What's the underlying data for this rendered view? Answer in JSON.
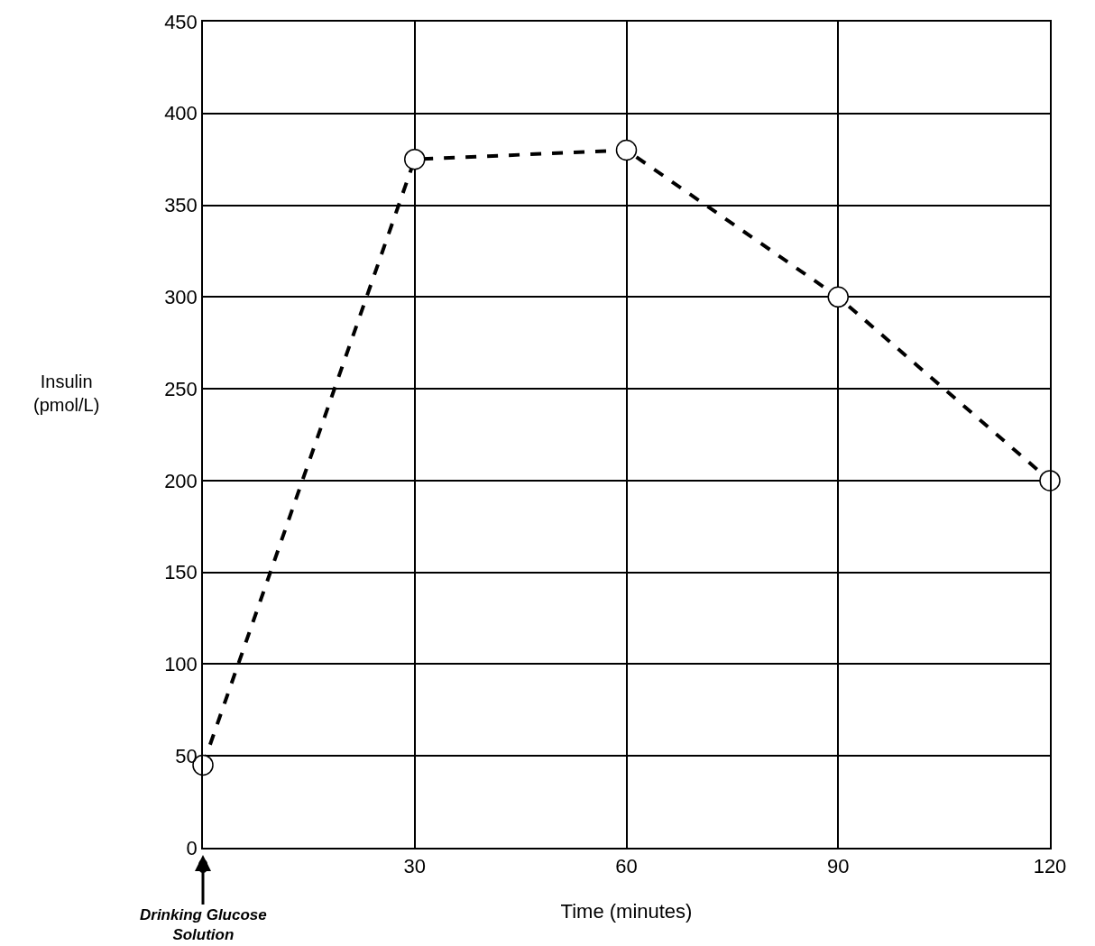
{
  "chart_data": {
    "type": "line",
    "xlabel": "Time (minutes)",
    "ylabel": "Insulin\n(pmol/L)",
    "x": [
      0,
      30,
      60,
      90,
      120
    ],
    "series": [
      {
        "color": "#000000",
        "values": [
          45,
          375,
          380,
          300,
          200
        ]
      }
    ],
    "xlim": [
      0,
      120
    ],
    "xticks": [
      0,
      30,
      60,
      90,
      120
    ],
    "ylim": [
      0,
      450
    ],
    "yticks": [
      0,
      50,
      100,
      150,
      200,
      250,
      300,
      350,
      400,
      450
    ],
    "grid": true,
    "marker": "circle",
    "line_style": "dashed",
    "annotations": [
      "Drinking Glucose\nSolution"
    ]
  }
}
